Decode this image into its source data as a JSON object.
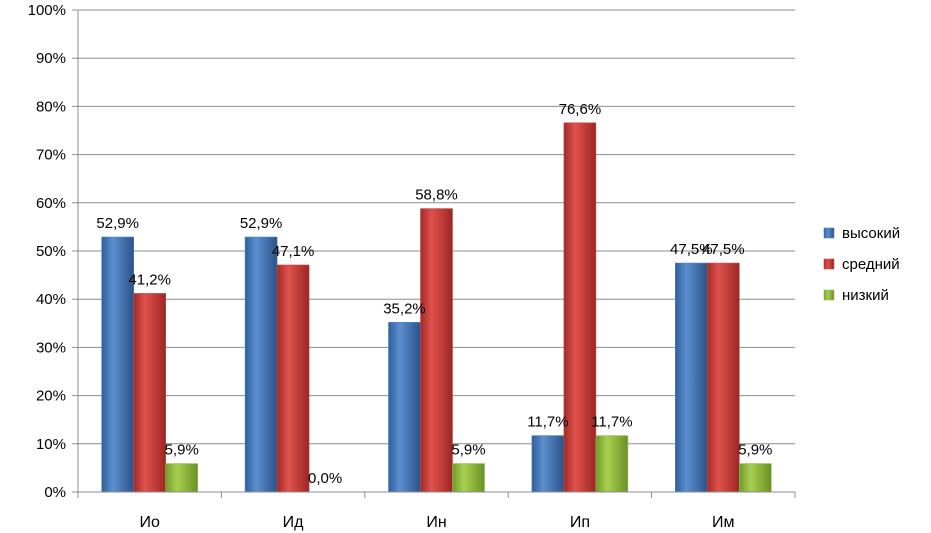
{
  "chart_data": {
    "type": "bar",
    "categories": [
      "Ио",
      "Ид",
      "Ин",
      "Ип",
      "Им"
    ],
    "series": [
      {
        "name": "высокий",
        "color": "#4f81bd",
        "values": [
          52.9,
          52.9,
          35.2,
          11.7,
          47.5
        ],
        "labels": [
          "52,9%",
          "52,9%",
          "35,2%",
          "11,7%",
          "47,5%"
        ]
      },
      {
        "name": "средний",
        "color": "#c0504d",
        "values": [
          41.2,
          47.1,
          58.8,
          76.6,
          47.5
        ],
        "labels": [
          "41,2%",
          "47,1%",
          "58,8%",
          "76,6%",
          "47,5%"
        ]
      },
      {
        "name": "низкий",
        "color": "#9bbb59",
        "values": [
          5.9,
          0.0,
          5.9,
          11.7,
          5.9
        ],
        "labels": [
          "5,9%",
          "0,0%",
          "5,9%",
          "11,7%",
          "5,9%"
        ]
      }
    ],
    "y_ticks": [
      "0%",
      "10%",
      "20%",
      "30%",
      "40%",
      "50%",
      "60%",
      "70%",
      "80%",
      "90%",
      "100%"
    ],
    "ylim": [
      0,
      100
    ],
    "grid": true,
    "legend_position": "right"
  }
}
